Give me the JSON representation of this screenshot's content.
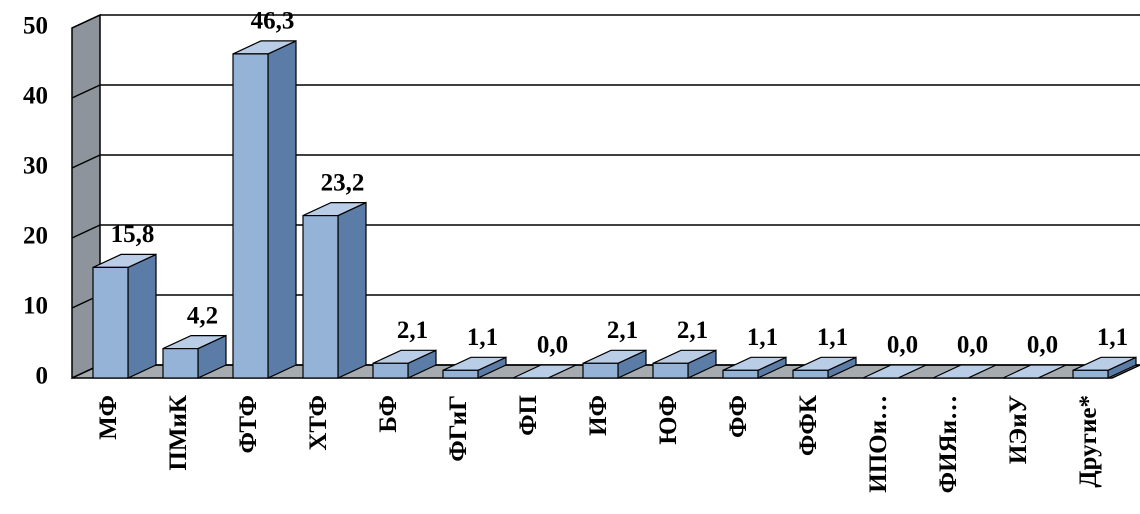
{
  "chart_data": {
    "type": "bar",
    "categories": [
      "МФ",
      "ПМиК",
      "ФТФ",
      "ХТФ",
      "БФ",
      "ФГиГ",
      "ФП",
      "ИФ",
      "ЮФ",
      "ФФ",
      "ФФК",
      "ИПОи…",
      "ФИЯи…",
      "ИЭиУ",
      "Другие*"
    ],
    "values": [
      15.8,
      4.2,
      46.3,
      23.2,
      2.1,
      1.1,
      0.0,
      2.1,
      2.1,
      1.1,
      1.1,
      0.0,
      0.0,
      0.0,
      1.1
    ],
    "value_labels": [
      "15,8",
      "4,2",
      "46,3",
      "23,2",
      "2,1",
      "1,1",
      "0,0",
      "2,1",
      "2,1",
      "1,1",
      "1,1",
      "0,0",
      "0,0",
      "0,0",
      "1,1"
    ],
    "color": "#95b3d7",
    "ylim": [
      0,
      50
    ],
    "yticks": [
      0,
      10,
      20,
      30,
      40,
      50
    ],
    "grid": true
  }
}
